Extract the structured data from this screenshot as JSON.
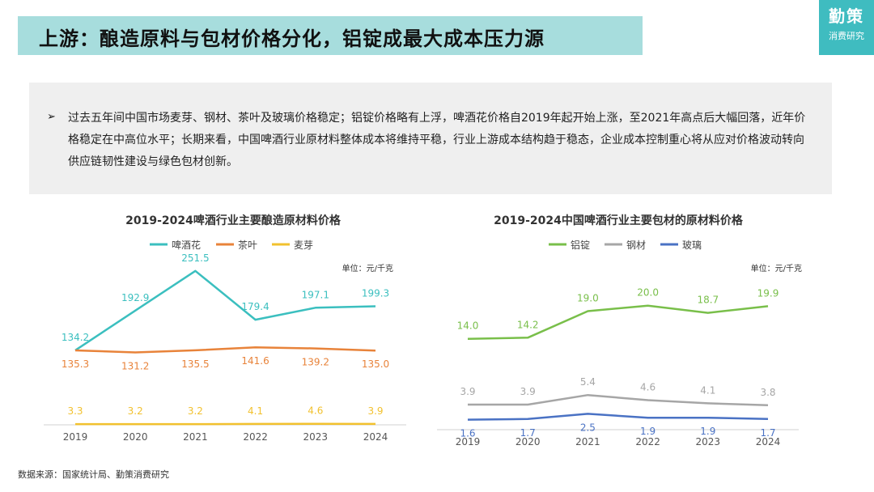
{
  "header": {
    "title": "上游：酿造原料与包材价格分化，铝锭成最大成本压力源"
  },
  "logo": {
    "line1": "勤策",
    "line2": "消费研究"
  },
  "summary": {
    "bullet": "➢",
    "text": "过去五年间中国市场麦芽、钢材、茶叶及玻璃价格稳定；铝锭价格略有上浮，啤酒花价格自2019年起开始上涨，至2021年高点后大幅回落，近年价格稳定在中高位水平；长期来看，中国啤酒行业原材料整体成本将维持平稳，行业上游成本结构趋于稳态，企业成本控制重心将从应对价格波动转向供应链韧性建设与绿色包材创新。"
  },
  "footer": {
    "source": "数据来源：国家统计局、勤策消费研究"
  },
  "chart_data": [
    {
      "type": "line",
      "title": "2019-2024啤酒行业主要酿造原材料价格",
      "unit": "单位：元/千克",
      "categories": [
        "2019",
        "2020",
        "2021",
        "2022",
        "2023",
        "2024"
      ],
      "series": [
        {
          "name": "啤酒花",
          "color": "#3bbfbf",
          "values": [
            134.2,
            192.9,
            251.5,
            179.4,
            197.1,
            199.3
          ]
        },
        {
          "name": "茶叶",
          "color": "#e8833a",
          "values": [
            135.3,
            131.2,
            135.5,
            141.6,
            139.2,
            135.0
          ]
        },
        {
          "name": "麦芽",
          "color": "#f2c12e",
          "values": [
            3.3,
            3.2,
            3.2,
            4.1,
            4.6,
            3.9
          ]
        }
      ],
      "legend": "top",
      "grid": false
    },
    {
      "type": "line",
      "title": "2019-2024中国啤酒行业主要包材的原材料价格",
      "unit": "单位：元/千克",
      "categories": [
        "2019",
        "2020",
        "2021",
        "2022",
        "2023",
        "2024"
      ],
      "series": [
        {
          "name": "铝锭",
          "color": "#79bf4a",
          "values": [
            14.0,
            14.2,
            19.0,
            20.0,
            18.7,
            19.9
          ]
        },
        {
          "name": "钢材",
          "color": "#a6a6a6",
          "values": [
            3.9,
            3.9,
            5.4,
            4.6,
            4.1,
            3.8
          ]
        },
        {
          "name": "玻璃",
          "color": "#4a72c4",
          "values": [
            1.6,
            1.7,
            2.5,
            1.9,
            1.9,
            1.7
          ]
        }
      ],
      "legend": "top",
      "grid": false
    }
  ]
}
